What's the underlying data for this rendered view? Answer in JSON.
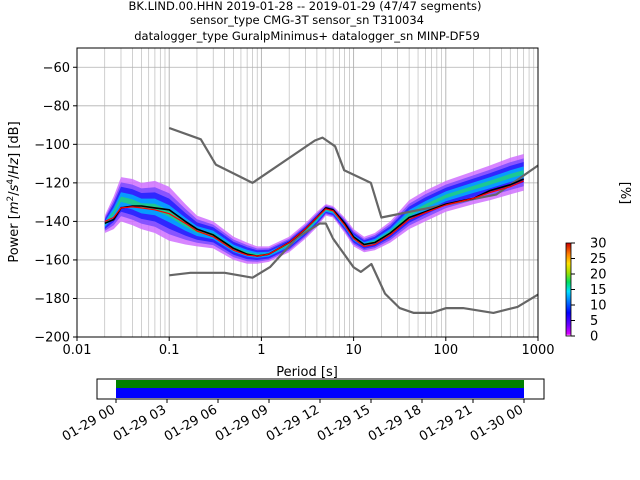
{
  "header": {
    "line1": "BK.LIND.00.HHN   2019-01-28 -- 2019-01-29  (47/47 segments)",
    "line2": "sensor_type CMG-3T sensor_sn T310034",
    "line3": "datalogger_type GuralpMinimus+ datalogger_sn MINP-DF59"
  },
  "chart_data": [
    {
      "type": "heatmap",
      "title": "BK.LIND.00.HHN   2019-01-28 -- 2019-01-29  (47/47 segments)",
      "xlabel": "Period [s]",
      "ylabel": "Power [m²/s⁴/Hz] [dB]",
      "x_scale": "log",
      "xlim": [
        0.01,
        1000
      ],
      "ylim": [
        -200,
        -50
      ],
      "x_ticks": [
        "0.01",
        "0.1",
        "1",
        "10",
        "100",
        "1000"
      ],
      "y_ticks": [
        "−200",
        "−180",
        "−160",
        "−140",
        "−120",
        "−100",
        "−80",
        "−60"
      ],
      "grid": true,
      "colorbar": {
        "label": "[%]",
        "range": [
          0,
          30
        ],
        "ticks": [
          "0",
          "5",
          "10",
          "15",
          "20",
          "25",
          "30"
        ]
      },
      "series": [
        {
          "name": "",
          "role": "high-noise-model",
          "color": "#666666",
          "x": [
            0.1,
            0.22,
            0.32,
            0.8,
            3.8,
            4.6,
            6.3,
            7.9,
            15.4,
            20,
            354.8,
            1000
          ],
          "y": [
            -91.5,
            -97.4,
            -110.5,
            -120,
            -98,
            -96.5,
            -101,
            -113.5,
            -120,
            -138,
            -126,
            -111
          ]
        },
        {
          "name": "",
          "role": "low-noise-model",
          "color": "#666666",
          "x": [
            0.1,
            0.17,
            0.4,
            0.8,
            1.24,
            2.4,
            4.3,
            5,
            6,
            10,
            12,
            15.6,
            21.9,
            31.6,
            45,
            70,
            101,
            154,
            328,
            600,
            1000
          ],
          "y": [
            -168,
            -166.7,
            -166.7,
            -169.2,
            -163.7,
            -148.6,
            -141.1,
            -141.1,
            -149,
            -163.8,
            -166.2,
            -162.1,
            -177.5,
            -185,
            -187.5,
            -187.5,
            -185,
            -185,
            -187.5,
            -184.4,
            -178
          ]
        },
        {
          "name": "",
          "role": "mode",
          "color": "#000000",
          "x": [
            0.02,
            0.025,
            0.03,
            0.04,
            0.05,
            0.07,
            0.1,
            0.15,
            0.2,
            0.3,
            0.5,
            0.7,
            0.9,
            1.2,
            2,
            3,
            4,
            5,
            6,
            8,
            10,
            13,
            17,
            25,
            40,
            60,
            100,
            200,
            300,
            500,
            700
          ],
          "y": [
            -141,
            -139,
            -133,
            -132,
            -132,
            -133,
            -134,
            -140,
            -144,
            -147,
            -154,
            -157,
            -158,
            -157,
            -151,
            -144,
            -138,
            -133,
            -134,
            -141,
            -148,
            -152,
            -151,
            -146,
            -138,
            -135,
            -131,
            -128,
            -124,
            -121,
            -118
          ]
        },
        {
          "name": "",
          "role": "mean",
          "color": "#ff0000",
          "x": [
            0.02,
            0.025,
            0.03,
            0.04,
            0.05,
            0.07,
            0.1,
            0.15,
            0.2,
            0.3,
            0.5,
            0.7,
            0.9,
            1.2,
            2,
            3,
            4,
            5,
            6,
            8,
            10,
            13,
            17,
            25,
            40,
            60,
            100,
            200,
            300,
            500,
            700
          ],
          "y": [
            -140,
            -138,
            -133,
            -132.5,
            -133,
            -134,
            -136,
            -141,
            -145,
            -148,
            -155,
            -157.5,
            -158,
            -157,
            -151,
            -144,
            -138,
            -133.5,
            -134.5,
            -142,
            -149,
            -153,
            -152,
            -147,
            -139,
            -135.5,
            -131.5,
            -128,
            -125,
            -122,
            -119
          ]
        }
      ],
      "spread": {
        "x": [
          0.02,
          0.025,
          0.03,
          0.04,
          0.05,
          0.07,
          0.1,
          0.15,
          0.2,
          0.3,
          0.5,
          0.7,
          0.9,
          1.2,
          2,
          3,
          4,
          5,
          6,
          8,
          10,
          13,
          17,
          25,
          40,
          60,
          100,
          200,
          300,
          500,
          700
        ],
        "upper": [
          -137,
          -127,
          -117,
          -118,
          -120,
          -119,
          -122,
          -131,
          -137,
          -140,
          -148,
          -151,
          -153,
          -153,
          -148,
          -141,
          -135,
          -131,
          -132,
          -138,
          -144,
          -148,
          -146,
          -140,
          -129,
          -124,
          -119,
          -114,
          -111,
          -107,
          -105
        ],
        "lower": [
          -146,
          -144,
          -140,
          -142,
          -144,
          -146,
          -150,
          -152,
          -153,
          -154,
          -160,
          -162,
          -162,
          -161,
          -156,
          -149,
          -143,
          -137,
          -138,
          -146,
          -153,
          -156,
          -155,
          -151,
          -144,
          -140,
          -135,
          -131,
          -129,
          -126,
          -124
        ]
      }
    },
    {
      "type": "timeline",
      "x_ticks": [
        "01-29 00",
        "01-29 03",
        "01-29 06",
        "01-29 09",
        "01-29 12",
        "01-29 15",
        "01-29 18",
        "01-29 21",
        "01-30 00"
      ],
      "series": [
        {
          "name": "",
          "color": "#008000",
          "coverage": [
            0,
            1
          ]
        },
        {
          "name": "",
          "color": "#0000ff",
          "coverage": [
            0,
            1
          ]
        }
      ]
    }
  ]
}
